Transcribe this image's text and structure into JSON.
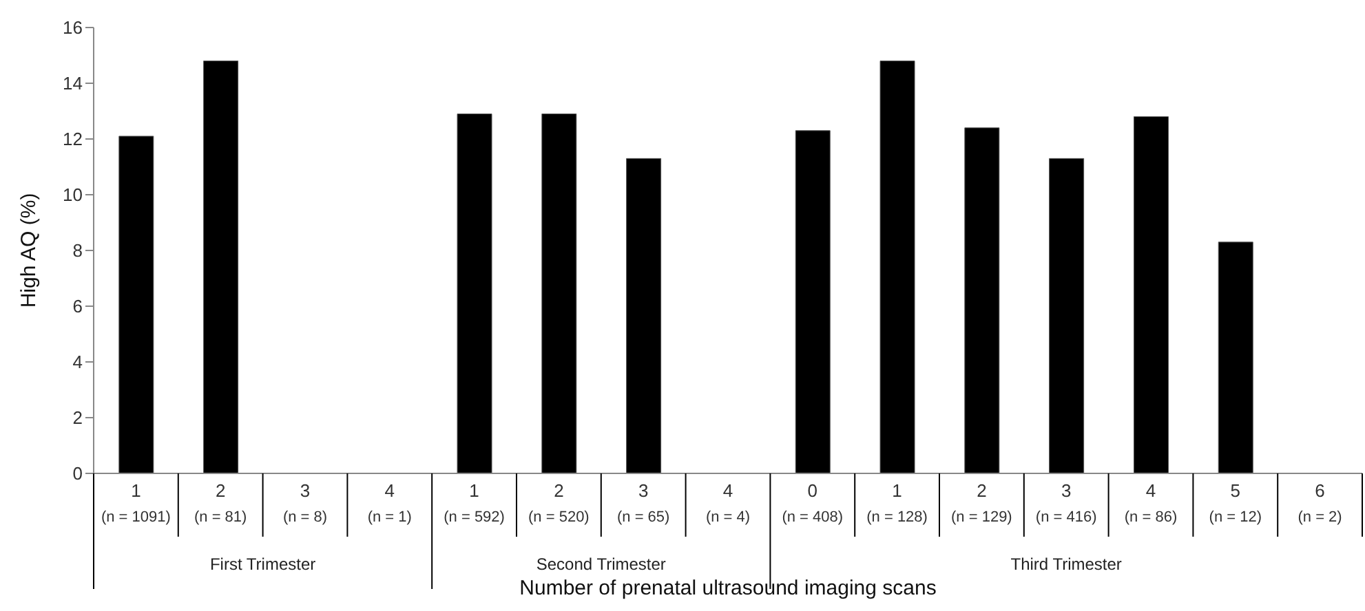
{
  "chart_data": {
    "type": "bar",
    "ylabel": "High AQ (%)",
    "xlabel": "Number of prenatal ultrasound imaging scans",
    "categories": [
      "1\n(n = 1091)",
      "2\n(n = 81)",
      "3\n(n = 8)",
      "4\n(n = 1)",
      "1\n(n = 592)",
      "2\n(n = 520)",
      "3\n(n = 65)",
      "4\n(n = 4)",
      "0\n(n = 408)",
      "1\n(n = 128)",
      "2\n(n = 129)",
      "3\n(n = 416)",
      "4\n(n = 86)",
      "5\n(n = 12)",
      "6\n(n = 2)"
    ],
    "values": [
      12.1,
      14.8,
      0,
      0,
      12.9,
      12.9,
      11.3,
      0,
      12.3,
      14.8,
      12.4,
      11.3,
      12.8,
      8.3,
      0
    ],
    "color": "#000000",
    "ylim": [
      0,
      16
    ],
    "yticks": [
      0,
      2,
      4,
      6,
      8,
      10,
      12,
      14,
      16
    ],
    "grid": false,
    "legend": false,
    "annotations": [
      "First Trimester",
      "Second Trimester",
      "Third Trimester"
    ]
  }
}
